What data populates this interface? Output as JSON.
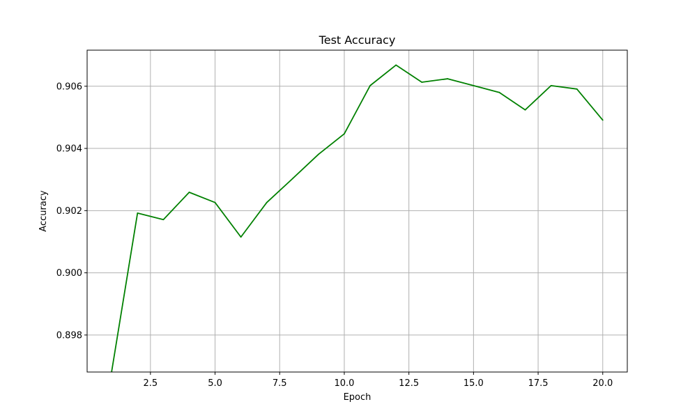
{
  "chart_data": {
    "type": "line",
    "title": "Test Accuracy",
    "xlabel": "Epoch",
    "ylabel": "Accuracy",
    "xlim": [
      0.05,
      20.95
    ],
    "ylim": [
      0.89681,
      0.90716
    ],
    "xticks": [
      2.5,
      5.0,
      7.5,
      10.0,
      12.5,
      15.0,
      17.5,
      20.0
    ],
    "xtick_labels": [
      "2.5",
      "5.0",
      "7.5",
      "10.0",
      "12.5",
      "15.0",
      "17.5",
      "20.0"
    ],
    "yticks": [
      0.898,
      0.9,
      0.902,
      0.904,
      0.906
    ],
    "ytick_labels": [
      "0.898",
      "0.900",
      "0.902",
      "0.904",
      "0.906"
    ],
    "grid": true,
    "series": [
      {
        "color": "#008000",
        "x": [
          1,
          2,
          3,
          4,
          5,
          6,
          7,
          8,
          9,
          10,
          11,
          12,
          13,
          14,
          15,
          16,
          17,
          18,
          19,
          20
        ],
        "y": [
          0.89683,
          0.90192,
          0.90171,
          0.90259,
          0.90226,
          0.90115,
          0.90226,
          0.90303,
          0.90381,
          0.90447,
          0.90602,
          0.90668,
          0.90613,
          0.90624,
          0.90602,
          0.9058,
          0.90524,
          0.90602,
          0.90591,
          0.90491
        ]
      }
    ]
  }
}
